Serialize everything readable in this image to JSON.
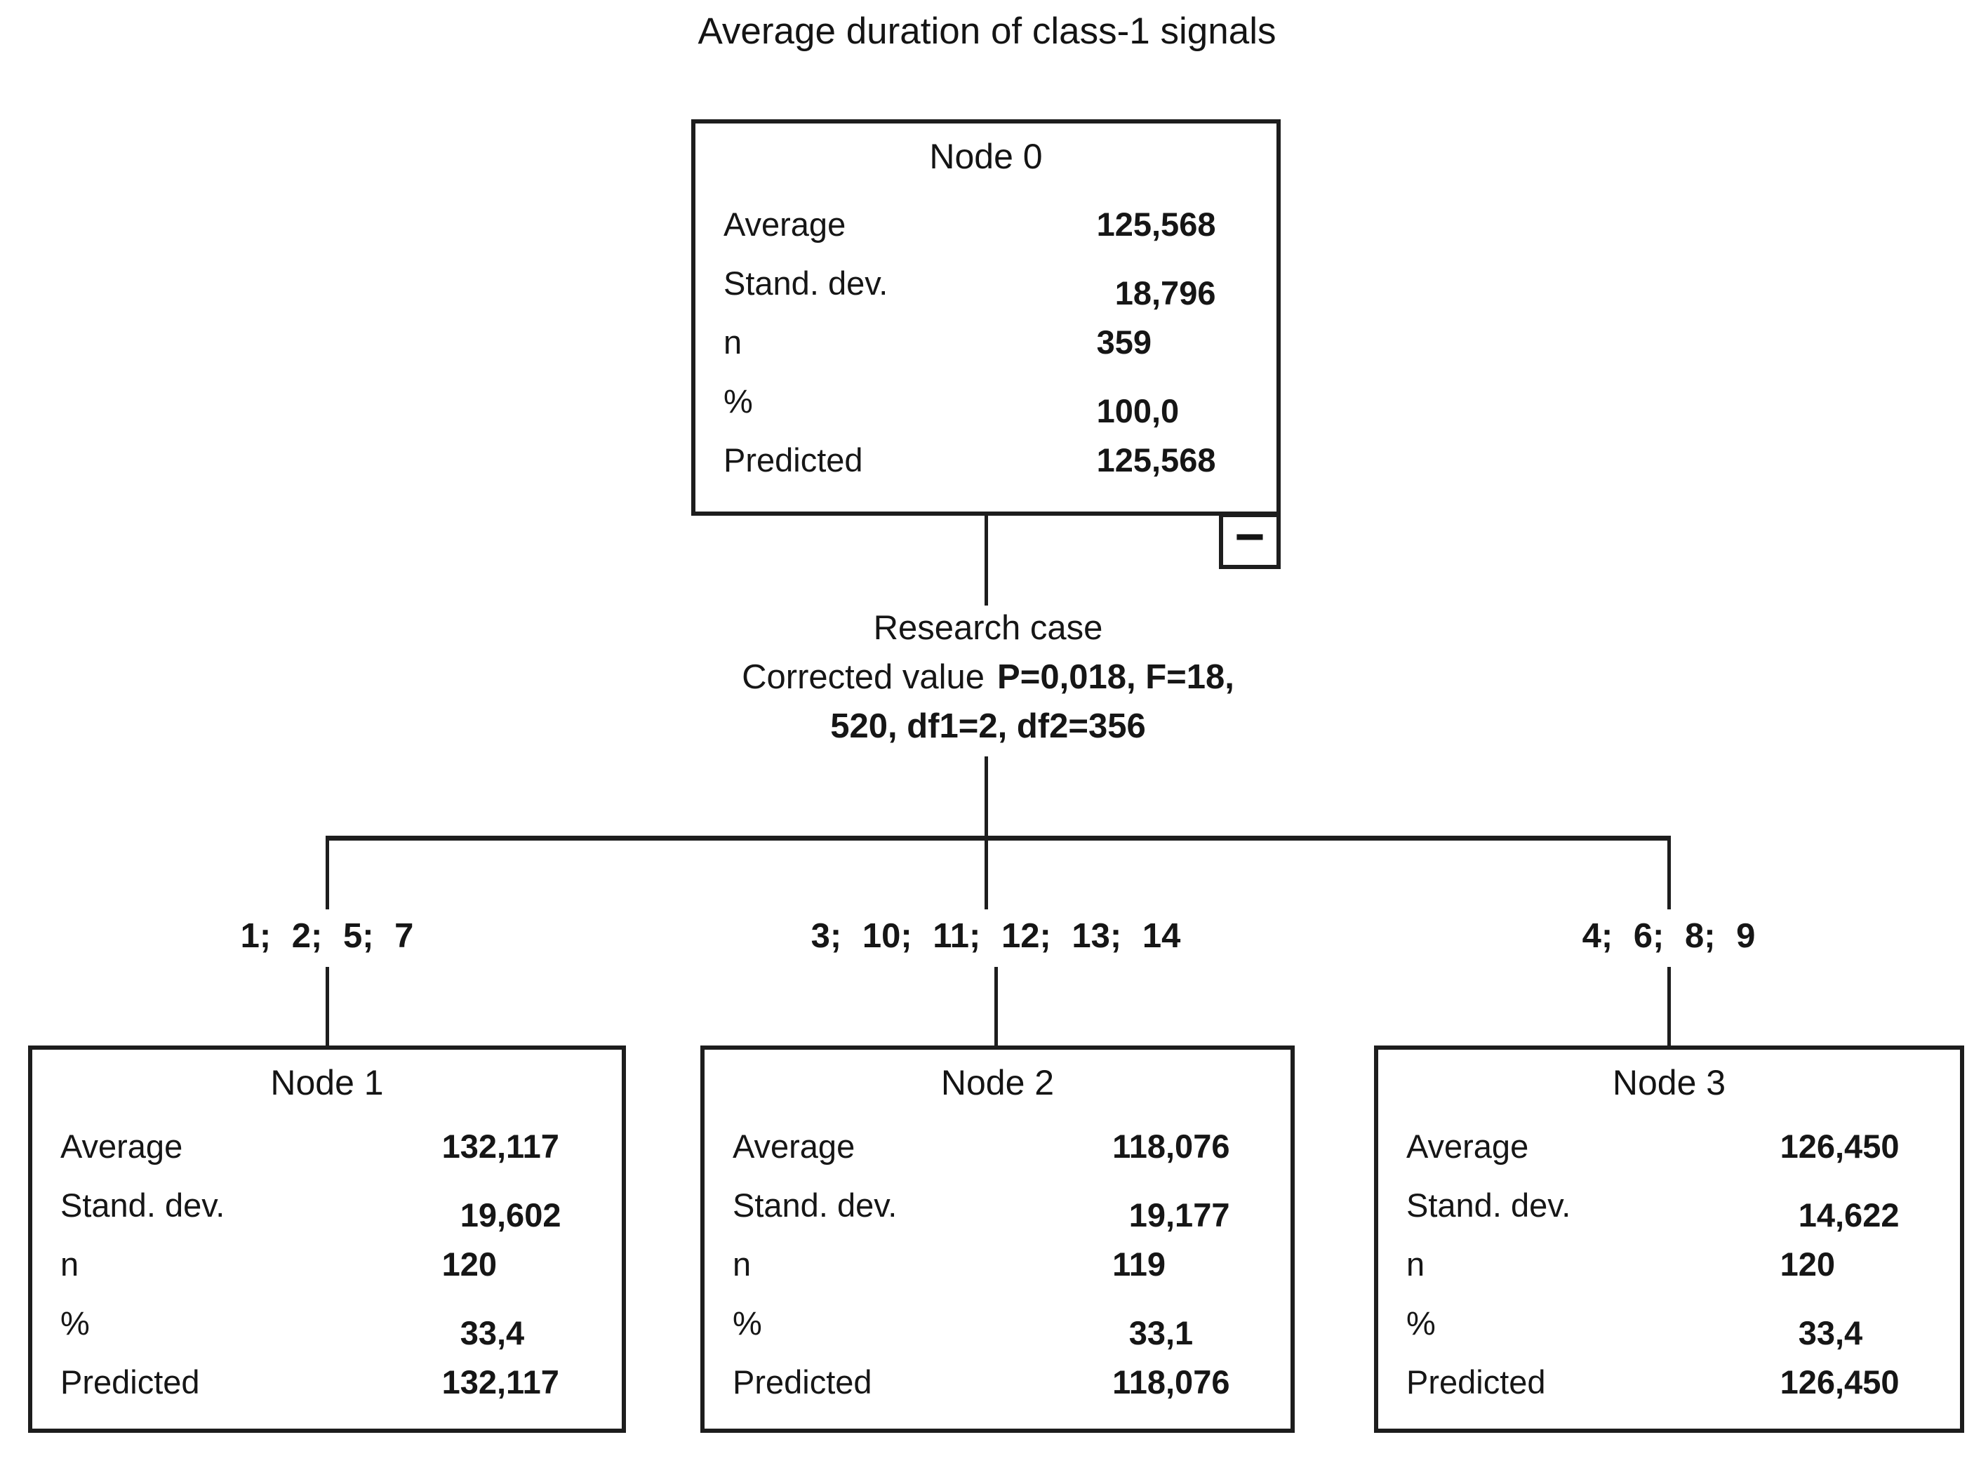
{
  "title": "Average duration of class-1 signals",
  "split_rule": {
    "variable": "Research case",
    "method_label": "Corrected value",
    "stats_line_1": "P=0,018, F=18,",
    "stats_line_2": "520, df1=2, df2=356"
  },
  "branch_labels": [
    "1; 2; 5; 7",
    "3; 10; 11; 12; 13; 14",
    "4; 6; 8; 9"
  ],
  "icons": {
    "collapse_minus": "−"
  },
  "nodes": [
    {
      "header": "Node 0",
      "rows": [
        {
          "label": "Average",
          "value": "125,568"
        },
        {
          "label": "Stand. dev.",
          "value": "18,796"
        },
        {
          "label": "n",
          "value": "359"
        },
        {
          "label": "%",
          "value": "100,0"
        },
        {
          "label": "Predicted",
          "value": "125,568"
        }
      ]
    },
    {
      "header": "Node 1",
      "rows": [
        {
          "label": "Average",
          "value": "132,117"
        },
        {
          "label": "Stand. dev.",
          "value": "19,602"
        },
        {
          "label": "n",
          "value": "120"
        },
        {
          "label": "%",
          "value": "33,4"
        },
        {
          "label": "Predicted",
          "value": "132,117"
        }
      ]
    },
    {
      "header": "Node 2",
      "rows": [
        {
          "label": "Average",
          "value": "118,076"
        },
        {
          "label": "Stand. dev.",
          "value": "19,177"
        },
        {
          "label": "n",
          "value": "119"
        },
        {
          "label": "%",
          "value": "33,1"
        },
        {
          "label": "Predicted",
          "value": "118,076"
        }
      ]
    },
    {
      "header": "Node 3",
      "rows": [
        {
          "label": "Average",
          "value": "126,450"
        },
        {
          "label": "Stand. dev.",
          "value": "14,622"
        },
        {
          "label": "n",
          "value": "120"
        },
        {
          "label": "%",
          "value": "33,4"
        },
        {
          "label": "Predicted",
          "value": "126,450"
        }
      ]
    }
  ]
}
